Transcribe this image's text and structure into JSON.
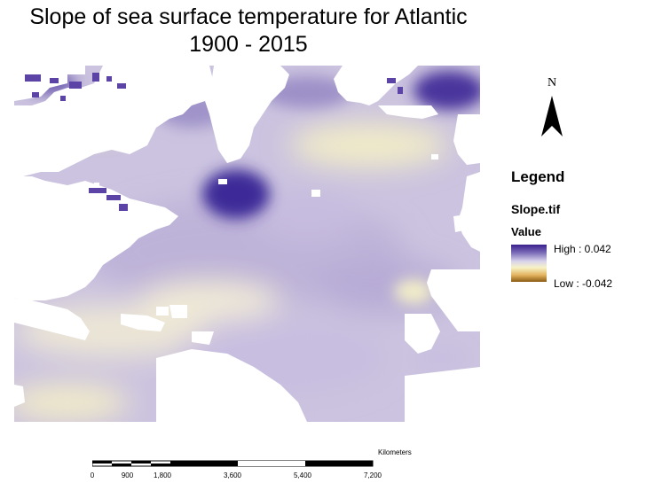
{
  "map": {
    "title_line1": "Slope of sea surface temperature for Atlantic",
    "title_line2": "1900 - 2015"
  },
  "north_arrow": {
    "label": "N"
  },
  "legend": {
    "title": "Legend",
    "layer_name": "Slope.tif",
    "field_name": "Value",
    "high_label": "High : 0.042",
    "low_label": "Low : -0.042",
    "high_value": 0.042,
    "low_value": -0.042,
    "colors": {
      "high": "#3a1f8e",
      "mid_high": "#7c6db8",
      "neutral": "#d9d4ec",
      "mid_low": "#f6f2c6",
      "low": "#8a5a12"
    }
  },
  "scalebar": {
    "unit": "Kilometers",
    "tick_labels": [
      "0",
      "900",
      "1,800",
      "3,600",
      "5,400",
      "7,200"
    ],
    "tick_values": [
      0,
      900,
      1800,
      3600,
      5400,
      7200
    ]
  }
}
